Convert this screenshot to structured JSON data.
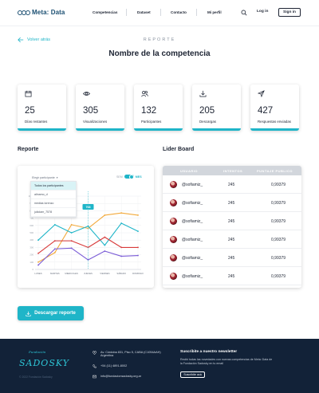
{
  "header": {
    "logo_text": "Meta: Data",
    "nav": [
      "Competencias",
      "Dataset",
      "Contacto",
      "Mi perfil"
    ],
    "login_label": "Log in",
    "signin_label": "Sign in"
  },
  "page": {
    "back_label": "Volver atrás",
    "kicker": "REPORTE",
    "title": "Nombre de la competencia"
  },
  "stats": [
    {
      "icon": "calendar-icon",
      "value": "25",
      "label": "Días restantes"
    },
    {
      "icon": "eye-icon",
      "value": "305",
      "label": "Visualizaciones"
    },
    {
      "icon": "users-icon",
      "value": "132",
      "label": "Participantes"
    },
    {
      "icon": "download-icon",
      "value": "205",
      "label": "Descargas"
    },
    {
      "icon": "send-icon",
      "value": "427",
      "label": "Respuestas enviadas"
    }
  ],
  "report": {
    "section_title": "Reporte",
    "dropdown_label": "Elegir participante",
    "dropdown_options": [
      "Todos los participantes",
      "alinamo_d",
      "medias lorenzo",
      "juliolam_7578"
    ],
    "toggle_left": "SEM",
    "toggle_right": "MES",
    "tooltip_value": "768"
  },
  "chart_data": {
    "type": "line",
    "categories": [
      "LUNES",
      "MARTES",
      "MIERCOLES",
      "JUEVES",
      "VIERNES",
      "SÁBADO",
      "DOMINGO"
    ],
    "yticks": [
      0,
      100,
      200,
      300,
      400,
      500,
      600,
      700,
      800,
      900,
      1000
    ],
    "ylim": [
      0,
      1000
    ],
    "series": [
      {
        "color": "#f2a93b",
        "values": [
          100,
          230,
          610,
          560,
          740,
          770,
          740
        ]
      },
      {
        "color": "#1fb5c8",
        "values": [
          400,
          610,
          500,
          590,
          330,
          630,
          520
        ]
      },
      {
        "color": "#d83a3a",
        "values": [
          220,
          390,
          390,
          300,
          440,
          300,
          300
        ]
      },
      {
        "color": "#7a5bd6",
        "values": [
          60,
          280,
          290,
          130,
          250,
          180,
          190
        ]
      }
    ]
  },
  "leaderboard": {
    "section_title": "Lider Board",
    "headers": [
      "USUARIO",
      "INTENTOS",
      "PUNTAJE PUBLICO"
    ],
    "rows": [
      {
        "user": "@sofiamiz_",
        "attempts": "245",
        "score": "0,99379"
      },
      {
        "user": "@sofiamiz_",
        "attempts": "245",
        "score": "0,99379"
      },
      {
        "user": "@sofiamiz_",
        "attempts": "245",
        "score": "0,99379"
      },
      {
        "user": "@sofiamiz_",
        "attempts": "245",
        "score": "0,99379"
      },
      {
        "user": "@sofiamiz_",
        "attempts": "245",
        "score": "0,99379"
      },
      {
        "user": "@sofiamiz_",
        "attempts": "245",
        "score": "0,99379"
      }
    ]
  },
  "download_label": "Descargar reporte",
  "footer": {
    "logo_small": "Fundación",
    "logo_big": "SADOSKY",
    "copyright": "© 2022 Fundación Sadosky",
    "address": "Av. Córdoba 831, Piso 5, CABA (C1054AAH) Argentina",
    "phone": "+54 (11) 4891-8002",
    "email": "info@fundacionsadosky.org.ar",
    "newsletter_title": "Suscribite a nuestro newsletter",
    "newsletter_text": "Recibí todas las novedades con nuevas competencias de Meta: Data de la Fundación Sadosky en tu email",
    "subscribe_label": "Suscribite acá"
  },
  "colors": {
    "accent": "#1fb5c8",
    "footer_bg": "#122238",
    "text": "#1d2433"
  }
}
